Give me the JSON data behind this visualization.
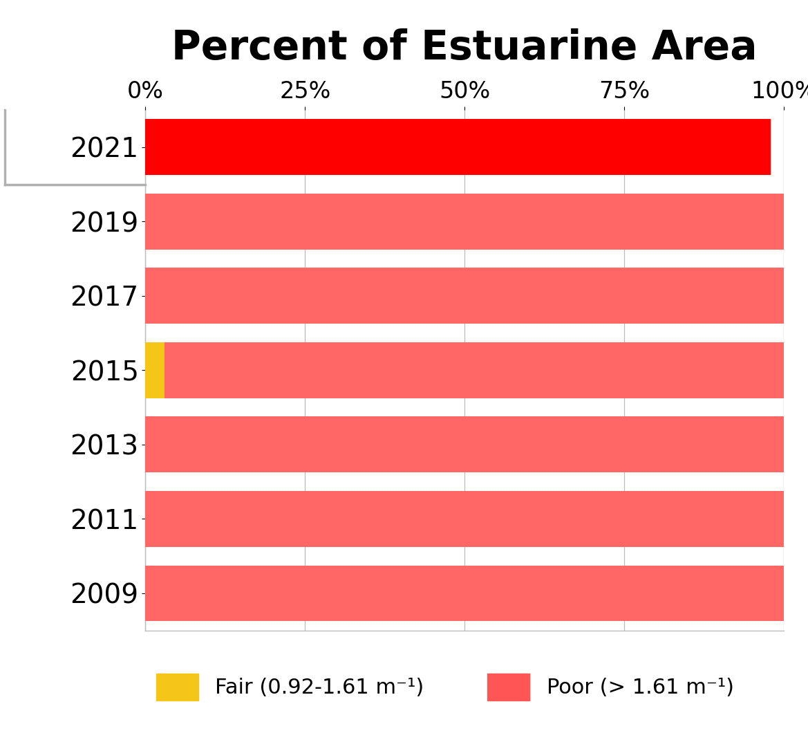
{
  "years": [
    "2021",
    "2019",
    "2017",
    "2015",
    "2013",
    "2011",
    "2009"
  ],
  "fair_values": [
    0,
    0,
    0,
    3,
    0,
    0,
    0
  ],
  "poor_values": [
    98,
    100,
    100,
    97,
    100,
    100,
    100
  ],
  "colors_poor": [
    "#ff0000",
    "#ff6666",
    "#ff6666",
    "#ff6666",
    "#ff6666",
    "#ff6666",
    "#ff6666"
  ],
  "color_fair": "#f5c518",
  "title": "Percent of Estuarine Area",
  "xlim": [
    0,
    100
  ],
  "xticks": [
    0,
    25,
    50,
    75,
    100
  ],
  "xticklabels": [
    "0%",
    "25%",
    "50%",
    "75%",
    "100%"
  ],
  "legend_fair_label": "Fair (0.92-1.61 m⁻¹)",
  "legend_poor_label": "Poor (> 1.61 m⁻¹)",
  "bg_color": "#ffffff",
  "highlight_box_color": "#b0b0b0",
  "bar_height": 0.75,
  "title_fontsize": 42,
  "tick_fontsize": 24,
  "year_fontsize": 28
}
